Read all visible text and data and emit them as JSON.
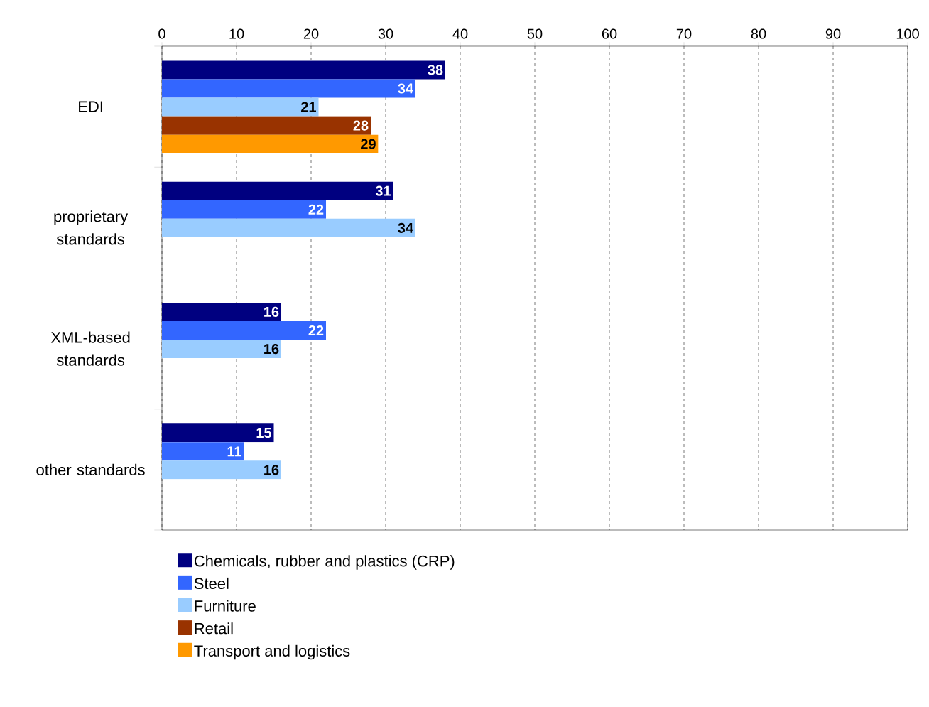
{
  "chart_data": {
    "type": "bar",
    "orientation": "horizontal",
    "categories": [
      "EDI",
      "proprietary standards",
      "XML-based standards",
      "other standards"
    ],
    "series": [
      {
        "name": "Chemicals, rubber and plastics (CRP)",
        "color": "#000080",
        "values": [
          38,
          31,
          16,
          15
        ]
      },
      {
        "name": "Steel",
        "color": "#3366ff",
        "values": [
          34,
          22,
          22,
          11
        ]
      },
      {
        "name": "Furniture",
        "color": "#99ccff",
        "values": [
          21,
          34,
          16,
          16
        ]
      },
      {
        "name": "Retail",
        "color": "#993300",
        "values": [
          28,
          null,
          null,
          null
        ]
      },
      {
        "name": "Transport and logistics",
        "color": "#ff9900",
        "values": [
          29,
          null,
          null,
          null
        ]
      }
    ],
    "xlim": [
      0,
      100
    ],
    "xticks": [
      0,
      10,
      20,
      30,
      40,
      50,
      60,
      70,
      80,
      90,
      100
    ],
    "grid": "x",
    "legend": "bottom",
    "data_labels": true
  }
}
